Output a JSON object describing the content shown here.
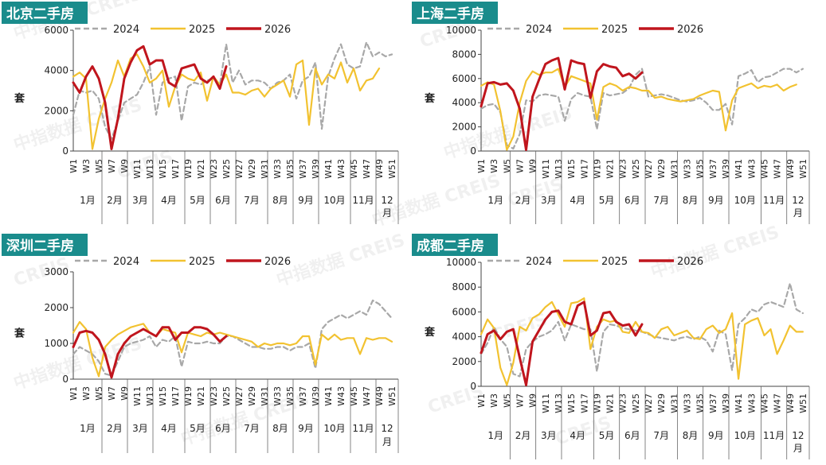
{
  "colors": {
    "badge_bg": "#1a8c8c",
    "badge_text": "#ffffff",
    "s2024": "#a8a8a8",
    "s2025": "#f2c230",
    "s2026": "#c0151d"
  },
  "legend_labels": [
    "2024",
    "2025",
    "2026"
  ],
  "watermark": {
    "cn": "中指数据",
    "en": "CREIS"
  },
  "tick_labels": [
    "W1",
    "W3",
    "W5",
    "W7",
    "W9",
    "W11",
    "W13",
    "W15",
    "W17",
    "W19",
    "W21",
    "W23",
    "W25",
    "W27",
    "W29",
    "W31",
    "W33",
    "W35",
    "W37",
    "W39",
    "W41",
    "W43",
    "W45",
    "W47",
    "W49",
    "W51"
  ],
  "months": [
    {
      "label": "1月",
      "from": 1,
      "to": 5
    },
    {
      "label": "2月",
      "from": 6,
      "to": 9
    },
    {
      "label": "3月",
      "from": 10,
      "to": 13
    },
    {
      "label": "4月",
      "from": 14,
      "to": 18
    },
    {
      "label": "5月",
      "from": 19,
      "to": 22
    },
    {
      "label": "6月",
      "from": 23,
      "to": 26
    },
    {
      "label": "7月",
      "from": 27,
      "to": 31
    },
    {
      "label": "8月",
      "from": 32,
      "to": 35
    },
    {
      "label": "9月",
      "from": 36,
      "to": 39
    },
    {
      "label": "10月",
      "from": 40,
      "to": 44
    },
    {
      "label": "11月",
      "from": 45,
      "to": 48
    },
    {
      "label": "12月",
      "from": 49,
      "to": 52
    }
  ],
  "chart_data": [
    {
      "type": "line",
      "title": "北京二手房",
      "ylabel": "套",
      "ylim": [
        0,
        6000
      ],
      "yticks": [
        0,
        2000,
        4000,
        6000
      ],
      "x": [
        1,
        2,
        3,
        4,
        5,
        6,
        7,
        8,
        9,
        10,
        11,
        12,
        13,
        14,
        15,
        16,
        17,
        18,
        19,
        20,
        21,
        22,
        23,
        24,
        25,
        26,
        27,
        28,
        29,
        30,
        31,
        32,
        33,
        34,
        35,
        36,
        37,
        38,
        39,
        40,
        41,
        42,
        43,
        44,
        45,
        46,
        47,
        48,
        49,
        50,
        51,
        52
      ],
      "series": [
        {
          "name": "2024",
          "values": [
            1800,
            3000,
            2900,
            3000,
            2600,
            1200,
            600,
            1500,
            2400,
            2600,
            2800,
            3400,
            4200,
            1800,
            3400,
            3600,
            3700,
            1500,
            3200,
            3400,
            3300,
            3500,
            3600,
            3300,
            5300,
            3400,
            4000,
            3300,
            3500,
            3500,
            3400,
            3100,
            3400,
            3500,
            3800,
            2600,
            3500,
            3700,
            4400,
            1100,
            3700,
            4600,
            5300,
            4300,
            4100,
            4200,
            5400,
            4700,
            4900,
            4700,
            4800,
            null
          ]
        },
        {
          "name": "2025",
          "values": [
            3700,
            3900,
            3600,
            100,
            1600,
            2600,
            3400,
            4500,
            3700,
            4600,
            4800,
            4200,
            3400,
            3600,
            4000,
            2200,
            3200,
            3800,
            3600,
            3500,
            3900,
            2500,
            3700,
            3300,
            3800,
            2900,
            2900,
            2800,
            3000,
            3100,
            2700,
            3100,
            3300,
            3500,
            2700,
            4300,
            4500,
            1300,
            4100,
            3300,
            3800,
            3600,
            4400,
            3400,
            4100,
            3000,
            3500,
            3600,
            4100,
            null,
            null,
            null
          ]
        },
        {
          "name": "2026",
          "values": [
            3400,
            2900,
            3700,
            4200,
            3600,
            2400,
            100,
            1600,
            3600,
            4400,
            5000,
            5200,
            4300,
            4500,
            4500,
            3400,
            3200,
            4100,
            4200,
            4300,
            3600,
            3400,
            3700,
            3100,
            4200,
            null,
            null,
            null,
            null,
            null,
            null,
            null,
            null,
            null,
            null,
            null,
            null,
            null,
            null,
            null,
            null,
            null,
            null,
            null,
            null,
            null,
            null,
            null,
            null,
            null,
            null,
            null
          ]
        }
      ]
    },
    {
      "type": "line",
      "title": "上海二手房",
      "ylabel": "套",
      "ylim": [
        0,
        10000
      ],
      "yticks": [
        0,
        2000,
        4000,
        6000,
        8000,
        10000
      ],
      "x": [
        1,
        2,
        3,
        4,
        5,
        6,
        7,
        8,
        9,
        10,
        11,
        12,
        13,
        14,
        15,
        16,
        17,
        18,
        19,
        20,
        21,
        22,
        23,
        24,
        25,
        26,
        27,
        28,
        29,
        30,
        31,
        32,
        33,
        34,
        35,
        36,
        37,
        38,
        39,
        40,
        41,
        42,
        43,
        44,
        45,
        46,
        47,
        48,
        49,
        50,
        51,
        52
      ],
      "series": [
        {
          "name": "2024",
          "values": [
            3500,
            3800,
            3900,
            3200,
            500,
            200,
            1400,
            4200,
            4100,
            4600,
            4700,
            4600,
            4500,
            2500,
            4300,
            4800,
            4600,
            4500,
            1800,
            4800,
            4600,
            4700,
            4800,
            5200,
            6300,
            6800,
            4500,
            4600,
            4700,
            4600,
            4400,
            4200,
            4100,
            4200,
            4400,
            4000,
            3400,
            3400,
            3900,
            2200,
            6200,
            6400,
            6700,
            5700,
            6100,
            6200,
            6500,
            6800,
            6800,
            6500,
            6800,
            null
          ]
        },
        {
          "name": "2025",
          "values": [
            5400,
            5700,
            5500,
            3300,
            100,
            1200,
            4000,
            5800,
            6600,
            6300,
            6500,
            6500,
            6800,
            5300,
            6200,
            6000,
            5800,
            5600,
            2600,
            5300,
            5600,
            5400,
            5000,
            5300,
            5200,
            5000,
            5000,
            4400,
            4500,
            4300,
            4200,
            4100,
            4200,
            4300,
            4600,
            4800,
            5000,
            4900,
            1700,
            4200,
            5200,
            5400,
            5600,
            5200,
            5400,
            5300,
            5500,
            5000,
            5300,
            5500,
            null,
            null
          ]
        },
        {
          "name": "2026",
          "values": [
            3700,
            5600,
            5700,
            5500,
            5600,
            5000,
            3500,
            100,
            4500,
            5900,
            7200,
            7500,
            7700,
            5100,
            7500,
            7300,
            7200,
            4400,
            6600,
            7200,
            7000,
            6900,
            6200,
            6400,
            6000,
            6500,
            null,
            null,
            null,
            null,
            null,
            null,
            null,
            null,
            null,
            null,
            null,
            null,
            null,
            null,
            null,
            null,
            null,
            null,
            null,
            null,
            null,
            null,
            null,
            null,
            null,
            null
          ]
        }
      ]
    },
    {
      "type": "line",
      "title": "深圳二手房",
      "ylabel": "套",
      "ylim": [
        0,
        3000
      ],
      "yticks": [
        0,
        1000,
        2000,
        3000
      ],
      "x": [
        1,
        2,
        3,
        4,
        5,
        6,
        7,
        8,
        9,
        10,
        11,
        12,
        13,
        14,
        15,
        16,
        17,
        18,
        19,
        20,
        21,
        22,
        23,
        24,
        25,
        26,
        27,
        28,
        29,
        30,
        31,
        32,
        33,
        34,
        35,
        36,
        37,
        38,
        39,
        40,
        41,
        42,
        43,
        44,
        45,
        46,
        47,
        48,
        49,
        50,
        51,
        52
      ],
      "series": [
        {
          "name": "2024",
          "values": [
            700,
            900,
            800,
            700,
            500,
            150,
            100,
            500,
            900,
            1000,
            1050,
            1100,
            1200,
            900,
            1100,
            1050,
            1200,
            350,
            1050,
            1000,
            1000,
            1050,
            1000,
            1000,
            1200,
            1200,
            1100,
            1000,
            900,
            900,
            850,
            850,
            900,
            900,
            800,
            900,
            900,
            1000,
            300,
            1400,
            1600,
            1700,
            1800,
            1700,
            1800,
            1900,
            1800,
            2200,
            2100,
            1900,
            1700,
            null
          ]
        },
        {
          "name": "2025",
          "values": [
            1300,
            1600,
            1400,
            600,
            80,
            900,
            1100,
            1250,
            1350,
            1450,
            1500,
            1550,
            1300,
            1200,
            1400,
            1350,
            1300,
            750,
            1300,
            1250,
            1200,
            1300,
            1250,
            1300,
            1250,
            1200,
            1150,
            1100,
            1050,
            900,
            1000,
            950,
            1000,
            1000,
            950,
            1000,
            1200,
            1200,
            400,
            1250,
            1100,
            1250,
            1100,
            1150,
            1150,
            700,
            1150,
            1100,
            1150,
            1150,
            1050,
            null
          ]
        },
        {
          "name": "2026",
          "values": [
            900,
            1300,
            1350,
            1300,
            1100,
            700,
            50,
            700,
            1000,
            1200,
            1300,
            1400,
            1300,
            1200,
            1450,
            1450,
            1100,
            1300,
            1300,
            1450,
            1450,
            1400,
            1250,
            1050,
            1200,
            null,
            null,
            null,
            null,
            null,
            null,
            null,
            null,
            null,
            null,
            null,
            null,
            null,
            null,
            null,
            null,
            null,
            null,
            null,
            null,
            null,
            null,
            null,
            null,
            null,
            null,
            null
          ]
        }
      ]
    },
    {
      "type": "line",
      "title": "成都二手房",
      "ylabel": "套",
      "ylim": [
        0,
        10000
      ],
      "yticks": [
        0,
        2000,
        4000,
        6000,
        8000,
        10000
      ],
      "x": [
        1,
        2,
        3,
        4,
        5,
        6,
        7,
        8,
        9,
        10,
        11,
        12,
        13,
        14,
        15,
        16,
        17,
        18,
        19,
        20,
        21,
        22,
        23,
        24,
        25,
        26,
        27,
        28,
        29,
        30,
        31,
        32,
        33,
        34,
        35,
        36,
        37,
        38,
        39,
        40,
        41,
        42,
        43,
        44,
        45,
        46,
        47,
        48,
        49,
        50,
        51,
        52
      ],
      "series": [
        {
          "name": "2024",
          "values": [
            2600,
            3500,
            4800,
            3800,
            3200,
            1000,
            800,
            3000,
            3600,
            4000,
            4200,
            4500,
            5200,
            3700,
            5000,
            4800,
            4600,
            4600,
            1200,
            4400,
            5000,
            4900,
            4700,
            4600,
            4500,
            4400,
            4200,
            4000,
            3900,
            3800,
            3700,
            3900,
            4000,
            3800,
            4000,
            3700,
            2800,
            4500,
            4200,
            1300,
            5000,
            5500,
            6200,
            6000,
            6600,
            6800,
            6600,
            6400,
            8300,
            6200,
            5900,
            null
          ]
        },
        {
          "name": "2025",
          "values": [
            4200,
            5400,
            4700,
            1500,
            100,
            1900,
            4800,
            4500,
            5500,
            5800,
            6400,
            6800,
            5800,
            4800,
            6700,
            6800,
            7100,
            3000,
            4800,
            5400,
            5200,
            5300,
            4400,
            4300,
            5200,
            4400,
            4300,
            3900,
            4600,
            4800,
            4100,
            4300,
            4500,
            3900,
            3800,
            4600,
            4900,
            4300,
            4600,
            5900,
            600,
            5000,
            5300,
            5500,
            4100,
            4600,
            2600,
            3700,
            4900,
            4400,
            4400,
            null
          ]
        },
        {
          "name": "2026",
          "values": [
            2700,
            4200,
            4500,
            3800,
            4400,
            4600,
            2300,
            100,
            3600,
            4500,
            5400,
            6000,
            6100,
            5200,
            5000,
            6500,
            6800,
            4100,
            4500,
            5900,
            6000,
            5200,
            4900,
            5000,
            4100,
            5000,
            null,
            null,
            null,
            null,
            null,
            null,
            null,
            null,
            null,
            null,
            null,
            null,
            null,
            null,
            null,
            null,
            null,
            null,
            null,
            null,
            null,
            null,
            null,
            null,
            null,
            null
          ]
        }
      ]
    }
  ]
}
